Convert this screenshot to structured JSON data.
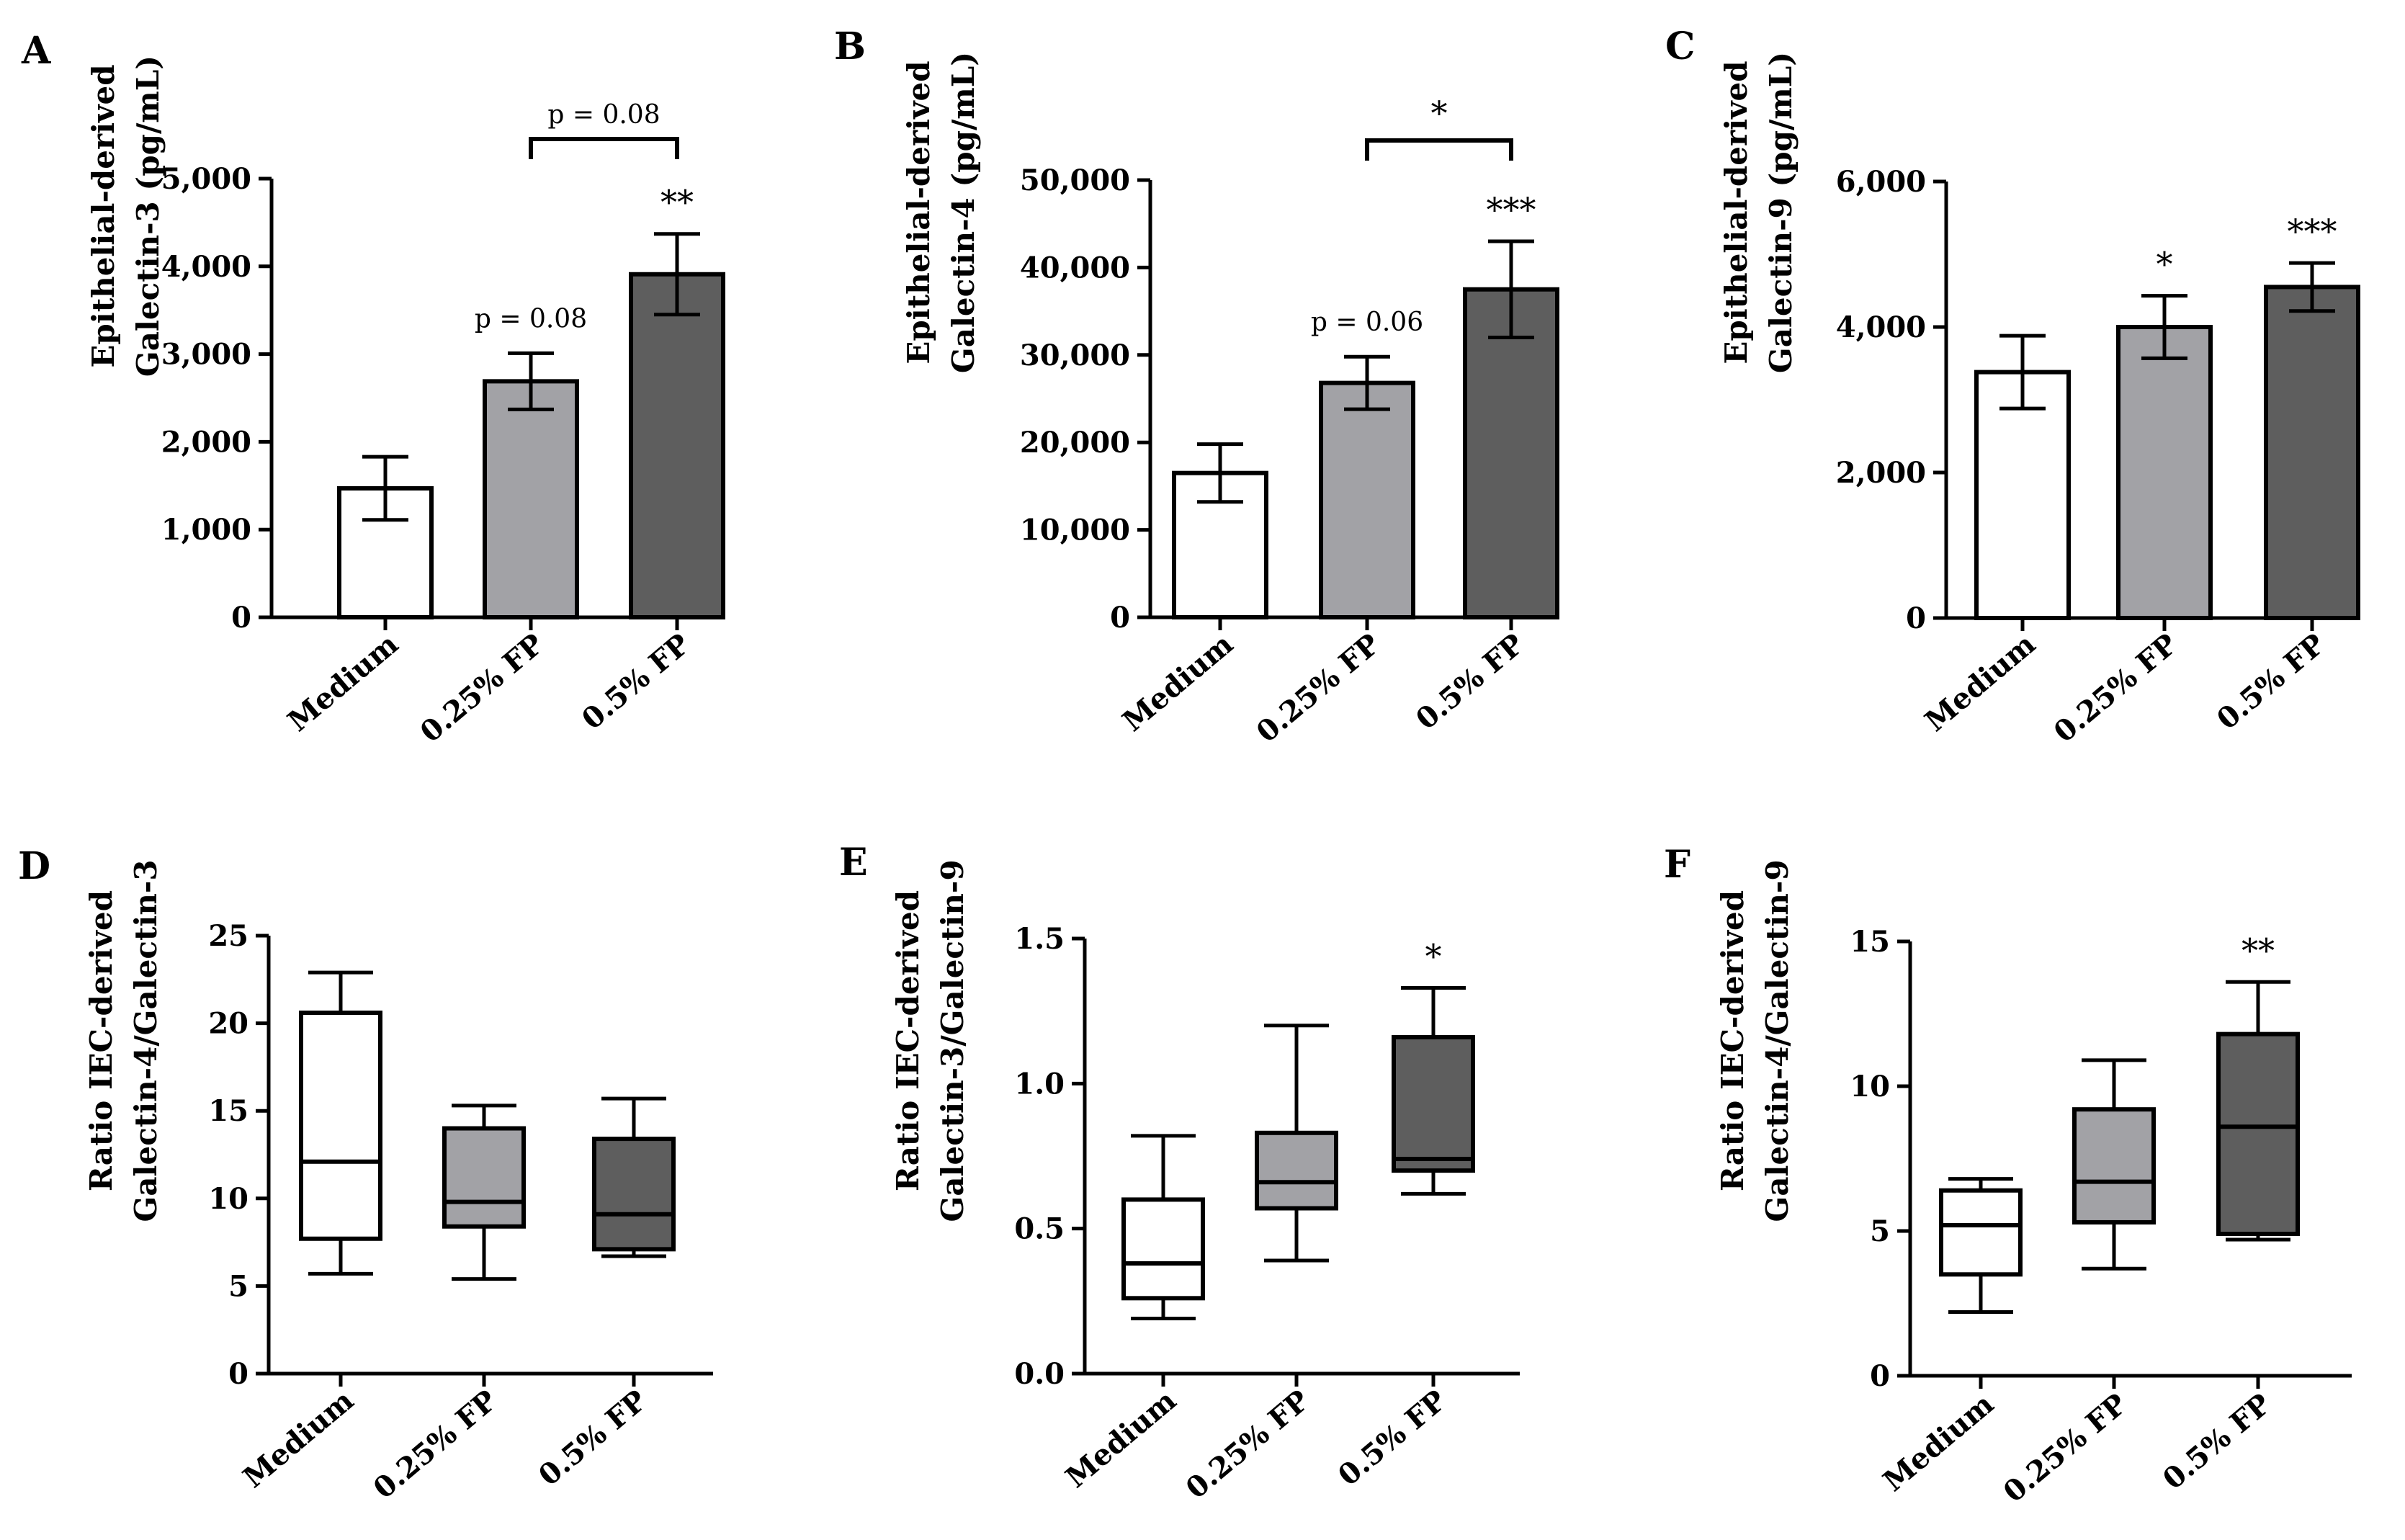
{
  "chart_data": [
    {
      "type": "bar",
      "panel": "A",
      "categories": [
        "Medium",
        "0.25% FP",
        "0.5% FP"
      ],
      "values": [
        1470,
        2690,
        3910
      ],
      "errors": [
        360,
        320,
        460
      ],
      "fills": [
        "#ffffff",
        "#a2a2a6",
        "#5e5e5e"
      ],
      "ylabel": [
        "Epithelial-derived",
        "Galectin-3 (pg/mL)"
      ],
      "ylim": [
        0,
        5000
      ],
      "yticks": [
        0,
        1000,
        2000,
        3000,
        4000,
        5000
      ],
      "ytick_labels": [
        "0",
        "1,000",
        "2,000",
        "3,000",
        "4,000",
        "5,000"
      ],
      "annotations": [
        "",
        "p = 0.08",
        "**"
      ],
      "bracket": {
        "from": 1,
        "to": 2,
        "label": "p = 0.08"
      }
    },
    {
      "type": "bar",
      "panel": "B",
      "categories": [
        "Medium",
        "0.25% FP",
        "0.5% FP"
      ],
      "values": [
        16500,
        26800,
        37500
      ],
      "errors": [
        3300,
        3000,
        5500
      ],
      "fills": [
        "#ffffff",
        "#a2a2a6",
        "#5e5e5e"
      ],
      "ylabel": [
        "Epithelial-derived",
        "Galectin-4 (pg/mL)"
      ],
      "ylim": [
        0,
        50000
      ],
      "yticks": [
        0,
        10000,
        20000,
        30000,
        40000,
        50000
      ],
      "ytick_labels": [
        "0",
        "10,000",
        "20,000",
        "30,000",
        "40,000",
        "50,000"
      ],
      "annotations": [
        "",
        "p = 0.06",
        "***"
      ],
      "bracket": {
        "from": 1,
        "to": 2,
        "label": "*"
      }
    },
    {
      "type": "bar",
      "panel": "C",
      "categories": [
        "Medium",
        "0.25% FP",
        "0.5% FP"
      ],
      "values": [
        3380,
        4000,
        4550
      ],
      "errors": [
        500,
        430,
        330
      ],
      "fills": [
        "#ffffff",
        "#a2a2a6",
        "#5e5e5e"
      ],
      "ylabel": [
        "Epithelial-derived",
        "Galectin-9 (pg/mL)"
      ],
      "ylim": [
        0,
        6000
      ],
      "yticks": [
        0,
        2000,
        4000,
        6000
      ],
      "ytick_labels": [
        "0",
        "2,000",
        "4,000",
        "6,000"
      ],
      "annotations": [
        "",
        "*",
        "***"
      ]
    },
    {
      "type": "box",
      "panel": "D",
      "categories": [
        "Medium",
        "0.25% FP",
        "0.5% FP"
      ],
      "boxes": [
        {
          "min": 5.7,
          "q1": 7.7,
          "median": 12.1,
          "q3": 20.6,
          "max": 22.9
        },
        {
          "min": 5.4,
          "q1": 8.4,
          "median": 9.8,
          "q3": 14.0,
          "max": 15.3
        },
        {
          "min": 6.7,
          "q1": 7.1,
          "median": 9.1,
          "q3": 13.4,
          "max": 15.7
        }
      ],
      "fills": [
        "#ffffff",
        "#a2a2a6",
        "#5e5e5e"
      ],
      "ylabel": [
        "Ratio IEC-derived",
        "Galectin-4/Galectin-3"
      ],
      "ylim": [
        0,
        25
      ],
      "yticks": [
        0,
        5,
        10,
        15,
        20,
        25
      ],
      "ytick_labels": [
        "0",
        "5",
        "10",
        "15",
        "20",
        "25"
      ],
      "annotations": [
        "",
        "",
        ""
      ]
    },
    {
      "type": "box",
      "panel": "E",
      "categories": [
        "Medium",
        "0.25% FP",
        "0.5% FP"
      ],
      "boxes": [
        {
          "min": 0.19,
          "q1": 0.26,
          "median": 0.38,
          "q3": 0.6,
          "max": 0.82
        },
        {
          "min": 0.39,
          "q1": 0.57,
          "median": 0.66,
          "q3": 0.83,
          "max": 1.2
        },
        {
          "min": 0.62,
          "q1": 0.7,
          "median": 0.74,
          "q3": 1.16,
          "max": 1.33
        }
      ],
      "fills": [
        "#ffffff",
        "#a2a2a6",
        "#5e5e5e"
      ],
      "ylabel": [
        "Ratio IEC-derived",
        "Galectin-3/Galectin-9"
      ],
      "ylim": [
        0,
        1.5
      ],
      "yticks": [
        0,
        0.5,
        1.0,
        1.5
      ],
      "ytick_labels": [
        "0.0",
        "0.5",
        "1.0",
        "1.5"
      ],
      "annotations": [
        "",
        "",
        "*"
      ]
    },
    {
      "type": "box",
      "panel": "F",
      "categories": [
        "Medium",
        "0.25% FP",
        "0.5% FP"
      ],
      "boxes": [
        {
          "min": 2.2,
          "q1": 3.5,
          "median": 5.2,
          "q3": 6.4,
          "max": 6.8
        },
        {
          "min": 3.7,
          "q1": 5.3,
          "median": 6.7,
          "q3": 9.2,
          "max": 10.9
        },
        {
          "min": 4.7,
          "q1": 4.9,
          "median": 8.6,
          "q3": 11.8,
          "max": 13.6
        }
      ],
      "fills": [
        "#ffffff",
        "#a2a2a6",
        "#5e5e5e"
      ],
      "ylabel": [
        "Ratio IEC-derived",
        "Galectin-4/Galectin-9"
      ],
      "ylim": [
        0,
        15
      ],
      "yticks": [
        0,
        5,
        10,
        15
      ],
      "ytick_labels": [
        "0",
        "5",
        "10",
        "15"
      ],
      "annotations": [
        "",
        "",
        "**"
      ]
    }
  ]
}
